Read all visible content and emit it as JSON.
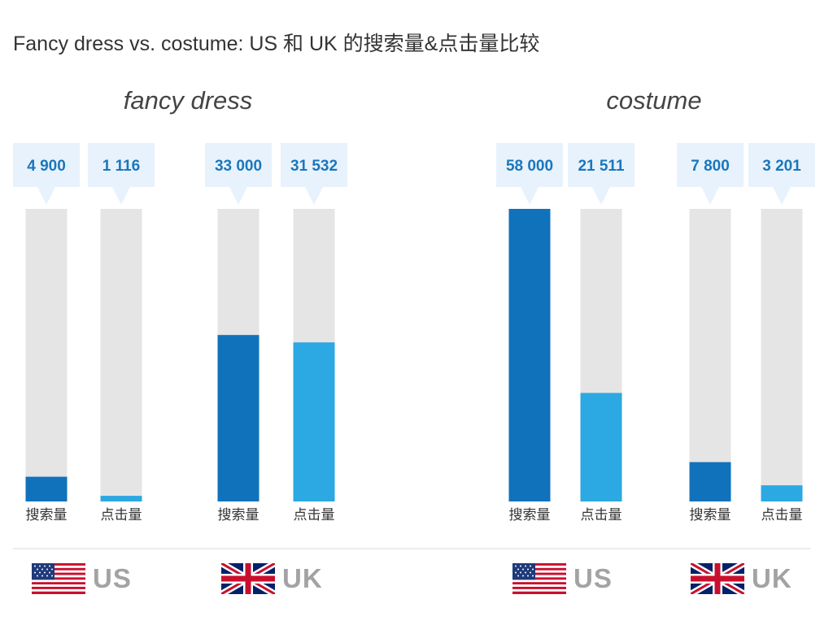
{
  "title": "Fancy dress vs. costume: US 和 UK 的搜索量&点击量比较",
  "colors": {
    "search_bar": "#1072bb",
    "click_bar": "#2ca8e2",
    "track": "#e5e5e5",
    "callout_bg": "#e8f2fc",
    "label_text": "#1a77bd",
    "country_text": "#a3a3a3"
  },
  "groups": [
    {
      "title": "fancy dress",
      "countries": [
        "US",
        "UK"
      ]
    },
    {
      "title": "costume",
      "countries": [
        "US",
        "UK"
      ]
    }
  ],
  "chart_data": {
    "type": "bar",
    "title": "Fancy dress vs. costume: US 和 UK 的搜索量&点击量比较",
    "ylim": [
      0,
      58000
    ],
    "grid": false,
    "bars": [
      {
        "group": "fancy dress",
        "country": "US",
        "category": "搜索量",
        "value": 4900,
        "label": "4 900",
        "kind": "search"
      },
      {
        "group": "fancy dress",
        "country": "US",
        "category": "点击量",
        "value": 1116,
        "label": "1 116",
        "kind": "click"
      },
      {
        "group": "fancy dress",
        "country": "UK",
        "category": "搜索量",
        "value": 33000,
        "label": "33 000",
        "kind": "search"
      },
      {
        "group": "fancy dress",
        "country": "UK",
        "category": "点击量",
        "value": 31532,
        "label": "31 532",
        "kind": "click"
      },
      {
        "group": "costume",
        "country": "US",
        "category": "搜索量",
        "value": 58000,
        "label": "58 000",
        "kind": "search"
      },
      {
        "group": "costume",
        "country": "US",
        "category": "点击量",
        "value": 21511,
        "label": "21 511",
        "kind": "click"
      },
      {
        "group": "costume",
        "country": "UK",
        "category": "搜索量",
        "value": 7800,
        "label": "7 800",
        "kind": "search"
      },
      {
        "group": "costume",
        "country": "UK",
        "category": "点击量",
        "value": 3201,
        "label": "3 201",
        "kind": "click"
      }
    ]
  }
}
